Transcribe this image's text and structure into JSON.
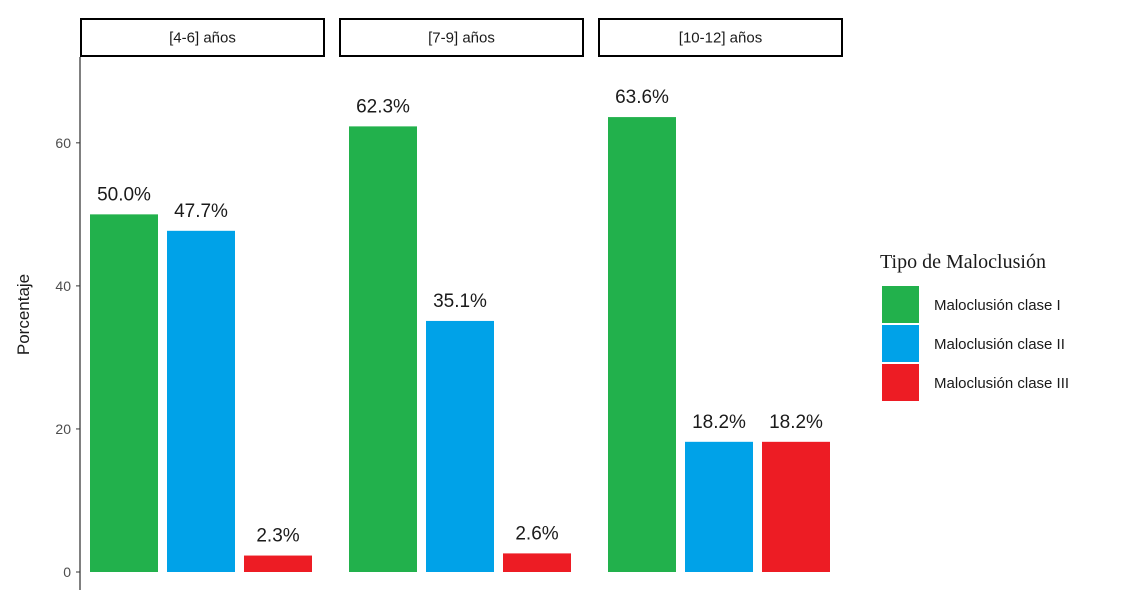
{
  "chart_data": {
    "type": "bar",
    "ylabel": "Porcentaje",
    "ylim": [
      0,
      72
    ],
    "yticks": [
      0,
      20,
      40,
      60
    ],
    "grid": false,
    "legend_placement": "right",
    "legend": {
      "title": "Tipo de Maloclusión",
      "entries": [
        "Maloclusión clase I",
        "Maloclusión clase II",
        "Maloclusión clase III"
      ]
    },
    "colors": [
      "#22b14c",
      "#00a2e8",
      "#ed1c24"
    ],
    "facets": [
      {
        "label": "[4-6] años",
        "values": [
          50.0,
          47.7,
          2.3
        ],
        "labels": [
          "50.0%",
          "47.7%",
          "2.3%"
        ]
      },
      {
        "label": "[7-9] años",
        "values": [
          62.3,
          35.1,
          2.6
        ],
        "labels": [
          "62.3%",
          "35.1%",
          "2.6%"
        ]
      },
      {
        "label": "[10-12] años",
        "values": [
          63.6,
          18.2,
          18.2
        ],
        "labels": [
          "63.6%",
          "18.2%",
          "18.2%"
        ]
      }
    ]
  }
}
